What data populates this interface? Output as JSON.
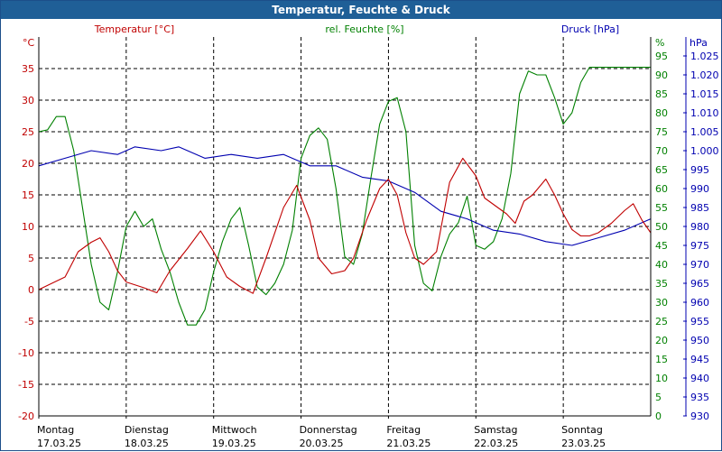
{
  "window": {
    "title": "Temperatur, Feuchte & Druck"
  },
  "chart_data": {
    "type": "line",
    "title": "Temperatur, Feuchte & Druck",
    "grid": true,
    "axes": {
      "temperature": {
        "label": "Temperatur [°C]",
        "unit": "°C",
        "range": [
          -20,
          40
        ],
        "ticks": [
          -20,
          -15,
          -10,
          -5,
          0,
          5,
          10,
          15,
          20,
          25,
          30,
          35
        ],
        "color": "#c00000"
      },
      "humidity": {
        "label": "rel. Feuchte [%]",
        "unit": "%",
        "range": [
          0,
          100
        ],
        "ticks": [
          0,
          5,
          10,
          15,
          20,
          25,
          30,
          35,
          40,
          45,
          50,
          55,
          60,
          65,
          70,
          75,
          80,
          85,
          90,
          95
        ],
        "color": "#008000"
      },
      "pressure": {
        "label": "Druck [hPa]",
        "unit": "hPa",
        "range": [
          930,
          1030
        ],
        "ticks": [
          "930",
          "935",
          "940",
          "945",
          "950",
          "955",
          "960",
          "965",
          "970",
          "975",
          "980",
          "985",
          "990",
          "995",
          "1.000",
          "1.005",
          "1.010",
          "1.015",
          "1.020",
          "1.025"
        ],
        "color": "#0000b0"
      }
    },
    "x_ticks": [
      {
        "day": "Montag",
        "date": "17.03.25"
      },
      {
        "day": "Dienstag",
        "date": "18.03.25"
      },
      {
        "day": "Mittwoch",
        "date": "19.03.25"
      },
      {
        "day": "Donnerstag",
        "date": "20.03.25"
      },
      {
        "day": "Freitag",
        "date": "21.03.25"
      },
      {
        "day": "Samstag",
        "date": "22.03.25"
      },
      {
        "day": "Sonntag",
        "date": "23.03.25"
      }
    ],
    "x_range_days": [
      0,
      7
    ],
    "series": [
      {
        "name": "Temperatur [°C]",
        "axis": "temperature",
        "color": "#c00000",
        "points": [
          [
            0,
            0
          ],
          [
            0.15,
            1
          ],
          [
            0.3,
            2
          ],
          [
            0.45,
            6
          ],
          [
            0.6,
            7.5
          ],
          [
            0.7,
            8.2
          ],
          [
            0.8,
            6
          ],
          [
            0.9,
            3
          ],
          [
            1.0,
            1.2
          ],
          [
            1.2,
            0.3
          ],
          [
            1.35,
            -0.5
          ],
          [
            1.5,
            3
          ],
          [
            1.7,
            6.5
          ],
          [
            1.85,
            9.3
          ],
          [
            2.0,
            6
          ],
          [
            2.15,
            2
          ],
          [
            2.3,
            0.5
          ],
          [
            2.45,
            -0.6
          ],
          [
            2.6,
            5
          ],
          [
            2.8,
            13
          ],
          [
            2.95,
            16.5
          ],
          [
            3.1,
            11
          ],
          [
            3.2,
            5
          ],
          [
            3.35,
            2.5
          ],
          [
            3.5,
            3
          ],
          [
            3.6,
            5
          ],
          [
            3.75,
            11
          ],
          [
            3.9,
            16
          ],
          [
            4.0,
            17.5
          ],
          [
            4.1,
            15
          ],
          [
            4.2,
            9
          ],
          [
            4.3,
            5
          ],
          [
            4.4,
            4
          ],
          [
            4.55,
            6
          ],
          [
            4.7,
            17
          ],
          [
            4.85,
            20.8
          ],
          [
            5.0,
            18
          ],
          [
            5.1,
            14.5
          ],
          [
            5.25,
            13
          ],
          [
            5.35,
            12
          ],
          [
            5.45,
            10.5
          ],
          [
            5.55,
            14
          ],
          [
            5.65,
            15
          ],
          [
            5.8,
            17.5
          ],
          [
            5.9,
            15
          ],
          [
            6.0,
            12
          ],
          [
            6.1,
            9.5
          ],
          [
            6.2,
            8.5
          ],
          [
            6.3,
            8.5
          ],
          [
            6.4,
            9
          ],
          [
            6.55,
            10.5
          ],
          [
            6.7,
            12.5
          ],
          [
            6.8,
            13.6
          ],
          [
            6.9,
            11
          ],
          [
            7.0,
            9
          ]
        ]
      },
      {
        "name": "rel. Feuchte [%]",
        "axis": "humidity",
        "color": "#008000",
        "points": [
          [
            0,
            75
          ],
          [
            0.1,
            75.5
          ],
          [
            0.2,
            79
          ],
          [
            0.3,
            79
          ],
          [
            0.4,
            70
          ],
          [
            0.5,
            55
          ],
          [
            0.6,
            40
          ],
          [
            0.7,
            30
          ],
          [
            0.8,
            28
          ],
          [
            0.9,
            38
          ],
          [
            1.0,
            50
          ],
          [
            1.1,
            54
          ],
          [
            1.2,
            50
          ],
          [
            1.3,
            52
          ],
          [
            1.4,
            44
          ],
          [
            1.5,
            38
          ],
          [
            1.6,
            30
          ],
          [
            1.7,
            24
          ],
          [
            1.8,
            24
          ],
          [
            1.9,
            28
          ],
          [
            2.0,
            38
          ],
          [
            2.1,
            46
          ],
          [
            2.2,
            52
          ],
          [
            2.3,
            55
          ],
          [
            2.4,
            45
          ],
          [
            2.5,
            34
          ],
          [
            2.6,
            32
          ],
          [
            2.7,
            35
          ],
          [
            2.8,
            40
          ],
          [
            2.9,
            49
          ],
          [
            3.0,
            68
          ],
          [
            3.1,
            74
          ],
          [
            3.2,
            76
          ],
          [
            3.3,
            73
          ],
          [
            3.4,
            60
          ],
          [
            3.5,
            42
          ],
          [
            3.6,
            40
          ],
          [
            3.7,
            48
          ],
          [
            3.8,
            63
          ],
          [
            3.9,
            77
          ],
          [
            4.0,
            83
          ],
          [
            4.1,
            84
          ],
          [
            4.2,
            75
          ],
          [
            4.3,
            45
          ],
          [
            4.4,
            35
          ],
          [
            4.5,
            33
          ],
          [
            4.6,
            42
          ],
          [
            4.7,
            48
          ],
          [
            4.8,
            51
          ],
          [
            4.9,
            58
          ],
          [
            5.0,
            45
          ],
          [
            5.1,
            44
          ],
          [
            5.2,
            46
          ],
          [
            5.3,
            52
          ],
          [
            5.4,
            64
          ],
          [
            5.5,
            85
          ],
          [
            5.6,
            91
          ],
          [
            5.7,
            90
          ],
          [
            5.8,
            90
          ],
          [
            5.9,
            84
          ],
          [
            6.0,
            77
          ],
          [
            6.1,
            80
          ],
          [
            6.2,
            88
          ],
          [
            6.3,
            92
          ],
          [
            7.0,
            92
          ]
        ]
      },
      {
        "name": "Druck [hPa]",
        "axis": "pressure",
        "color": "#0000b0",
        "points": [
          [
            0,
            996
          ],
          [
            0.3,
            998
          ],
          [
            0.6,
            1000
          ],
          [
            0.9,
            999
          ],
          [
            1.1,
            1001
          ],
          [
            1.4,
            1000
          ],
          [
            1.6,
            1001
          ],
          [
            1.9,
            998
          ],
          [
            2.2,
            999
          ],
          [
            2.5,
            998
          ],
          [
            2.8,
            999
          ],
          [
            3.1,
            996
          ],
          [
            3.4,
            996
          ],
          [
            3.7,
            993
          ],
          [
            4.0,
            992
          ],
          [
            4.3,
            989
          ],
          [
            4.6,
            984
          ],
          [
            4.9,
            982
          ],
          [
            5.2,
            979
          ],
          [
            5.5,
            978
          ],
          [
            5.8,
            976
          ],
          [
            6.1,
            975
          ],
          [
            6.4,
            977
          ],
          [
            6.7,
            979
          ],
          [
            7.0,
            982
          ]
        ]
      }
    ]
  }
}
